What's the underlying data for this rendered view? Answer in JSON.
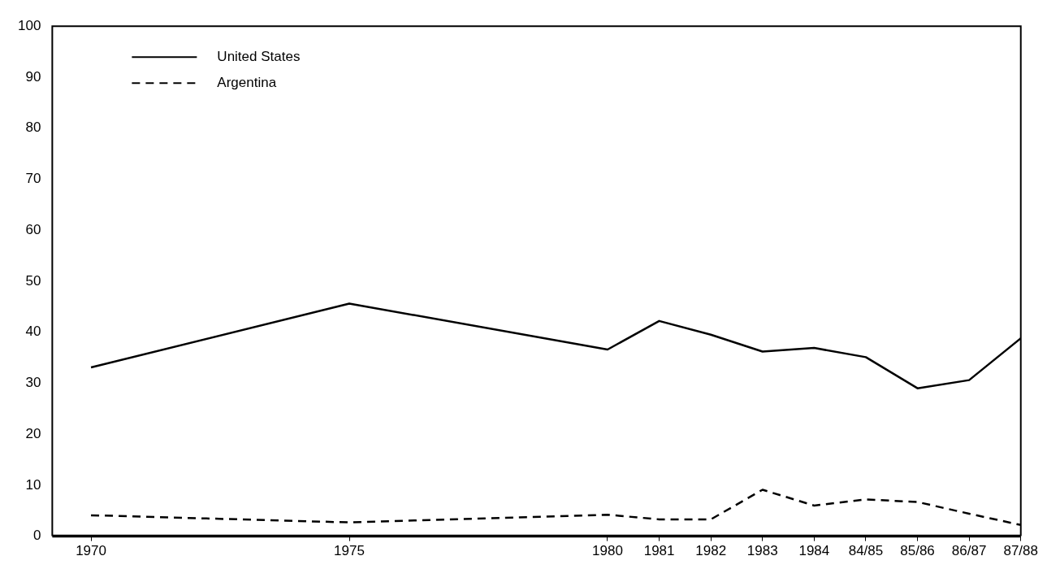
{
  "chart_data": {
    "type": "line",
    "x": [
      1970,
      1975,
      1980,
      1981,
      1982,
      1983,
      1984,
      1985,
      1986,
      1987,
      1988
    ],
    "xlim": [
      1969.25,
      1988
    ],
    "xticks": [
      1970,
      1975,
      1980,
      1981,
      1982,
      1983,
      1984,
      {
        "value": 1985,
        "label": "84/85"
      },
      {
        "value": 1986,
        "label": "85/86"
      },
      {
        "value": 1987,
        "label": "86/87"
      },
      {
        "value": 1988,
        "label": "87/88"
      }
    ],
    "ylim": [
      0,
      100
    ],
    "yticks": [
      0,
      10,
      20,
      30,
      40,
      50,
      60,
      70,
      80,
      90,
      100
    ],
    "series": [
      {
        "name": "United States",
        "color": "#000000",
        "line_style": "solid",
        "values": [
          33.1,
          45.6,
          36.6,
          42.2,
          39.5,
          36.2,
          36.9,
          35.1,
          29.0,
          30.6,
          38.8
        ]
      },
      {
        "name": "Argentina",
        "color": "#000000",
        "line_style": "dashed",
        "values": [
          4.1,
          2.7,
          4.2,
          3.3,
          3.3,
          9.1,
          6.0,
          7.2,
          6.7,
          4.4,
          2.2
        ]
      }
    ],
    "grid": false,
    "legend": "top left",
    "marker": "none"
  }
}
